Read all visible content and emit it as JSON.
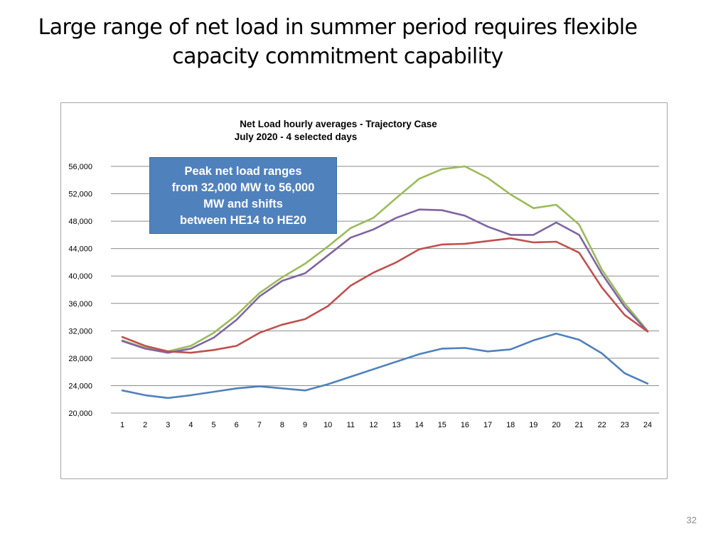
{
  "slide": {
    "title_line1": "Large range of net load in summer period requires flexible",
    "title_line2": "capacity commitment capability",
    "page_number": "32"
  },
  "callout": {
    "lines": [
      "Peak net load ranges",
      "from 32,000 MW to 56,000",
      "MW and shifts",
      "between HE14 to HE20"
    ]
  },
  "chart_data": {
    "type": "line",
    "title": "Net Load hourly averages - Trajectory Case",
    "subtitle": "July 2020 - 4 selected days",
    "xlabel": "",
    "ylabel": "",
    "ylim": [
      20000,
      56000
    ],
    "yticks": [
      20000,
      24000,
      28000,
      32000,
      36000,
      40000,
      44000,
      48000,
      52000,
      56000
    ],
    "ytick_labels": [
      "20,000",
      "24,000",
      "28,000",
      "32,000",
      "36,000",
      "40,000",
      "44,000",
      "48,000",
      "52,000",
      "56,000"
    ],
    "grid": true,
    "legend": "none",
    "x": [
      1,
      2,
      3,
      4,
      5,
      6,
      7,
      8,
      9,
      10,
      11,
      12,
      13,
      14,
      15,
      16,
      17,
      18,
      19,
      20,
      21,
      22,
      23,
      24
    ],
    "series": [
      {
        "color": "#9bbb59",
        "values": [
          30600,
          29500,
          29000,
          29800,
          31700,
          34300,
          37500,
          39800,
          41800,
          44300,
          47000,
          48500,
          51400,
          54200,
          55600,
          56000,
          54300,
          51900,
          49900,
          50400,
          47500,
          40900,
          36000,
          32000
        ]
      },
      {
        "color": "#8064a2",
        "values": [
          30500,
          29400,
          28800,
          29400,
          31000,
          33600,
          37000,
          39300,
          40400,
          43000,
          45600,
          46800,
          48500,
          49700,
          49600,
          48800,
          47200,
          46000,
          46000,
          47800,
          46000,
          40300,
          35500,
          31900
        ]
      },
      {
        "color": "#c0504d",
        "values": [
          31100,
          29800,
          29000,
          28800,
          29200,
          29800,
          31700,
          32900,
          33700,
          35600,
          38600,
          40500,
          42000,
          43900,
          44600,
          44700,
          45100,
          45500,
          44900,
          45000,
          43400,
          38300,
          34300,
          31900
        ]
      },
      {
        "color": "#4f81bd",
        "values": [
          23300,
          22600,
          22200,
          22600,
          23100,
          23600,
          23900,
          23600,
          23300,
          24200,
          25300,
          26400,
          27500,
          28600,
          29400,
          29500,
          29000,
          29300,
          30600,
          31600,
          30700,
          28700,
          25800,
          24300
        ]
      }
    ]
  }
}
